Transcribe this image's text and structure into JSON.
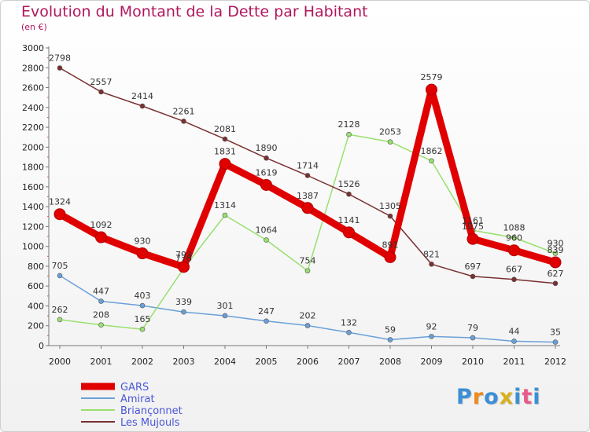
{
  "title": "Evolution du Montant de la Dette par Habitant",
  "subtitle": "(en €)",
  "logo": {
    "text": "Proxiti",
    "letter_colors": [
      "#3a8fd6",
      "#f08a1a",
      "#3a8fd6",
      "#d8b020",
      "#3a8fd6",
      "#e85a8a",
      "#3a8fd6"
    ]
  },
  "chart_data": {
    "type": "line",
    "title": "Evolution du Montant de la Dette par Habitant",
    "subtitle": "(en €)",
    "x": [
      "2000",
      "2001",
      "2002",
      "2003",
      "2004",
      "2005",
      "2006",
      "2007",
      "2008",
      "2009",
      "2010",
      "2011",
      "2012"
    ],
    "ylim": [
      0,
      3000
    ],
    "yticks": [
      0,
      200,
      400,
      600,
      800,
      1000,
      1200,
      1400,
      1600,
      1800,
      2000,
      2200,
      2400,
      2600,
      2800,
      3000
    ],
    "grid": false,
    "legend": "bottom-left",
    "series": [
      {
        "name": "GARS",
        "color": "#e00000",
        "values": [
          1324,
          1092,
          930,
          793,
          1831,
          1619,
          1387,
          1141,
          891,
          2579,
          1075,
          960,
          839
        ],
        "labels": [
          "1324",
          "1092",
          "930",
          "793",
          "1831",
          "1619",
          "1387",
          "1141",
          "891",
          "2579",
          "1075",
          "960",
          "839"
        ]
      },
      {
        "name": "Amirat",
        "color": "#6aa0d8",
        "values": [
          705,
          447,
          403,
          339,
          301,
          247,
          202,
          132,
          59,
          92,
          79,
          44,
          35
        ],
        "labels": [
          "705",
          "447",
          "403",
          "339",
          "301",
          "247",
          "202",
          "132",
          "59",
          "92",
          "79",
          "44",
          "35"
        ]
      },
      {
        "name": "Briançonnet",
        "color": "#99e06e",
        "values": [
          262,
          208,
          165,
          778,
          1314,
          1064,
          754,
          2128,
          2053,
          1862,
          1161,
          1088,
          930
        ],
        "labels": [
          "262",
          "208",
          "165",
          "778",
          "1314",
          "1064",
          "754",
          "2128",
          "2053",
          "1862",
          "1161",
          "1088",
          "930"
        ]
      },
      {
        "name": "Les Mujouls",
        "color": "#7a3030",
        "values": [
          2798,
          2557,
          2414,
          2261,
          2081,
          1890,
          1714,
          1526,
          1305,
          821,
          697,
          667,
          627
        ],
        "labels": [
          "2798",
          "2557",
          "2414",
          "2261",
          "2081",
          "1890",
          "1714",
          "1526",
          "1305",
          "821",
          "697",
          "667",
          "627"
        ]
      }
    ]
  }
}
